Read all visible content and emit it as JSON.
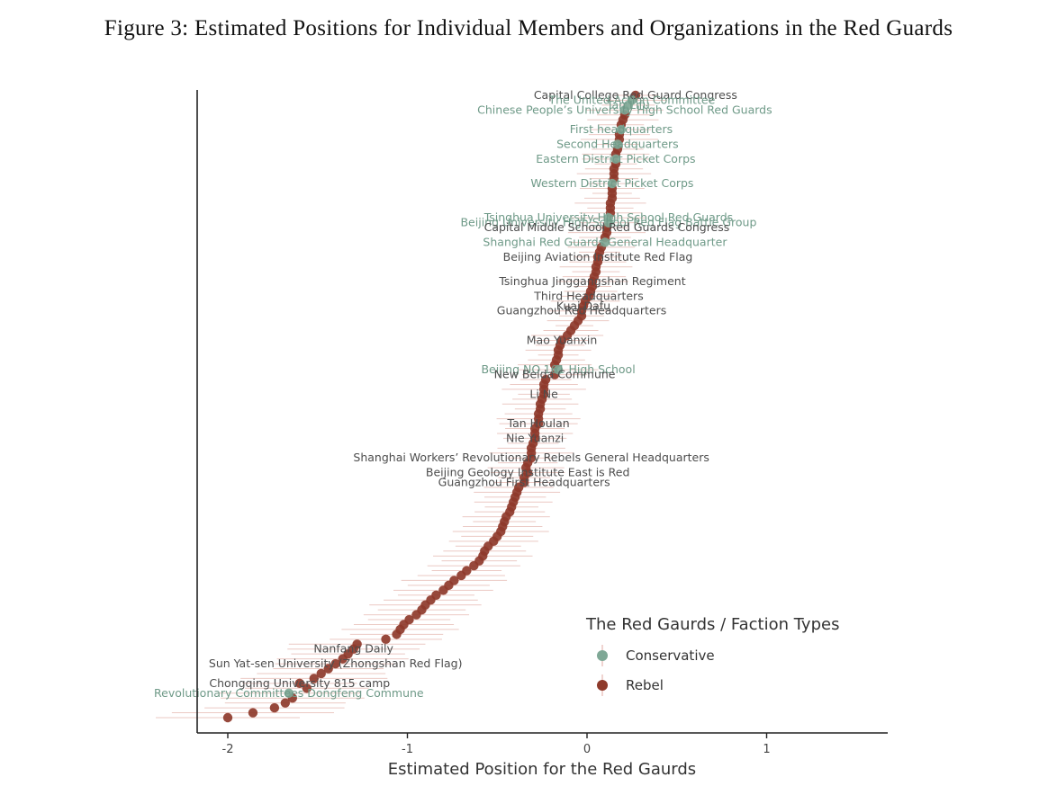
{
  "figure_title": "Figure 3: Estimated Positions for Individual Members and Organizations in the Red Guards",
  "colors": {
    "Conservative": "#7fa896",
    "Rebel": "#8e3a2b",
    "axis": "#222222",
    "error_bar": "#e5b7b0"
  },
  "chart_data": {
    "type": "scatter",
    "title": "",
    "xlabel": "Estimated Position for the Red Gaurds",
    "ylabel": "",
    "xlim": [
      -2.2,
      1.65
    ],
    "x_ticks": [
      -2,
      -1,
      0,
      1
    ],
    "x_tick_labels": [
      "-2",
      "-1",
      "0",
      "1"
    ],
    "n_ranks": 128,
    "legend": {
      "title": "The Red Gaurds / Faction Types",
      "position": "bottom-right",
      "entries": [
        "Conservative",
        "Rebel"
      ]
    },
    "labeled_points": [
      {
        "label": "Capital College Red Guard Congress",
        "x": 0.27,
        "rank": 127,
        "type": "Rebel"
      },
      {
        "label": "The United Action Committee",
        "x": 0.25,
        "rank": 126,
        "type": "Conservative"
      },
      {
        "label": "Tan Lifu",
        "x": 0.23,
        "rank": 125,
        "type": "Conservative"
      },
      {
        "label": "Chinese People’s University High School Red Guards",
        "x": 0.21,
        "rank": 124,
        "type": "Conservative"
      },
      {
        "label": "First headquarters",
        "x": 0.19,
        "rank": 120,
        "type": "Conservative"
      },
      {
        "label": "Second Headquarters",
        "x": 0.17,
        "rank": 117,
        "type": "Conservative"
      },
      {
        "label": "Eastern District Picket Corps",
        "x": 0.16,
        "rank": 114,
        "type": "Conservative"
      },
      {
        "label": "Western District Picket Corps",
        "x": 0.14,
        "rank": 109,
        "type": "Conservative"
      },
      {
        "label": "Tsinghua University High School Red Guards",
        "x": 0.12,
        "rank": 102,
        "type": "Conservative"
      },
      {
        "label": "Beijing University High School Red Flag Battle Group",
        "x": 0.12,
        "rank": 101,
        "type": "Conservative"
      },
      {
        "label": "Capital Middle School Red Guards Congress",
        "x": 0.11,
        "rank": 100,
        "type": "Rebel"
      },
      {
        "label": "Shanghai Red Guards General Headquarter",
        "x": 0.1,
        "rank": 97,
        "type": "Conservative"
      },
      {
        "label": "Beijing Aviation Institute Red Flag",
        "x": 0.06,
        "rank": 94,
        "type": "Rebel"
      },
      {
        "label": "Tsinghua Jinggangshan Regiment",
        "x": 0.03,
        "rank": 89,
        "type": "Rebel"
      },
      {
        "label": "Third Headquarters",
        "x": 0.01,
        "rank": 86,
        "type": "Rebel"
      },
      {
        "label": "Kuai Dafu",
        "x": -0.02,
        "rank": 84,
        "type": "Rebel"
      },
      {
        "label": "Guangzhou Red Headquarters",
        "x": -0.03,
        "rank": 83,
        "type": "Rebel"
      },
      {
        "label": "Mao Yuanxin",
        "x": -0.14,
        "rank": 77,
        "type": "Rebel"
      },
      {
        "label": "Beijing NO.161 High School",
        "x": -0.16,
        "rank": 71,
        "type": "Conservative"
      },
      {
        "label": "New Beida Commune",
        "x": -0.18,
        "rank": 70,
        "type": "Rebel"
      },
      {
        "label": "Li Ne",
        "x": -0.24,
        "rank": 66,
        "type": "Rebel"
      },
      {
        "label": "Tan Houlan",
        "x": -0.27,
        "rank": 60,
        "type": "Rebel"
      },
      {
        "label": "Nie Yuanzi",
        "x": -0.29,
        "rank": 57,
        "type": "Rebel"
      },
      {
        "label": "Shanghai Workers’ Revolutionary Rebels General Headquarters",
        "x": -0.31,
        "rank": 53,
        "type": "Rebel"
      },
      {
        "label": "Beijing Geology Institute East is Red",
        "x": -0.33,
        "rank": 50,
        "type": "Rebel"
      },
      {
        "label": "Guangzhou First Headquarters",
        "x": -0.35,
        "rank": 48,
        "type": "Rebel"
      },
      {
        "label": "Nanfang Daily",
        "x": -1.3,
        "rank": 14,
        "type": "Rebel"
      },
      {
        "label": "Sun Yat-sen University (Zhongshan Red Flag)",
        "x": -1.4,
        "rank": 11,
        "type": "Rebel"
      },
      {
        "label": "Chongqing University 815 camp",
        "x": -1.6,
        "rank": 7,
        "type": "Rebel"
      },
      {
        "label": "Revolutionary Committees Dongfeng Commune",
        "x": -1.66,
        "rank": 5,
        "type": "Conservative"
      }
    ],
    "unlabeled_points": {
      "type": "Rebel",
      "rank": [
        0,
        1,
        2,
        3,
        4,
        6,
        8,
        9,
        10,
        12,
        13,
        15,
        16,
        17,
        18,
        19,
        20,
        21,
        22,
        23,
        24,
        25,
        26,
        27,
        28,
        29,
        30,
        31,
        32,
        33,
        34,
        35,
        36,
        37,
        38,
        39,
        40,
        41,
        42,
        43,
        44,
        45,
        46,
        47,
        49,
        51,
        52,
        54,
        55,
        56,
        58,
        59,
        61,
        62,
        63,
        64,
        65,
        67,
        68,
        69,
        72,
        73,
        74,
        75,
        76,
        78,
        79,
        80,
        81,
        82,
        85,
        87,
        88,
        90,
        91,
        92,
        93,
        95,
        96,
        98,
        99,
        103,
        104,
        105,
        106,
        107,
        108,
        110,
        111,
        112,
        113,
        115,
        116,
        118,
        119,
        121,
        122,
        123
      ],
      "x": [
        -2.0,
        -1.86,
        -1.74,
        -1.68,
        -1.64,
        -1.56,
        -1.52,
        -1.48,
        -1.44,
        -1.36,
        -1.33,
        -1.28,
        -1.12,
        -1.06,
        -1.04,
        -1.02,
        -0.99,
        -0.95,
        -0.92,
        -0.9,
        -0.87,
        -0.84,
        -0.8,
        -0.77,
        -0.74,
        -0.7,
        -0.67,
        -0.63,
        -0.6,
        -0.58,
        -0.57,
        -0.55,
        -0.52,
        -0.5,
        -0.48,
        -0.47,
        -0.46,
        -0.45,
        -0.43,
        -0.42,
        -0.41,
        -0.4,
        -0.39,
        -0.38,
        -0.35,
        -0.34,
        -0.33,
        -0.31,
        -0.31,
        -0.3,
        -0.29,
        -0.29,
        -0.27,
        -0.27,
        -0.26,
        -0.26,
        -0.25,
        -0.24,
        -0.24,
        -0.23,
        -0.18,
        -0.17,
        -0.16,
        -0.16,
        -0.15,
        -0.11,
        -0.09,
        -0.07,
        -0.05,
        -0.03,
        -0.01,
        0.02,
        0.03,
        0.04,
        0.05,
        0.05,
        0.06,
        0.07,
        0.08,
        0.1,
        0.11,
        0.13,
        0.13,
        0.13,
        0.14,
        0.14,
        0.14,
        0.15,
        0.15,
        0.15,
        0.16,
        0.16,
        0.17,
        0.18,
        0.18,
        0.19,
        0.2,
        0.21
      ]
    }
  }
}
